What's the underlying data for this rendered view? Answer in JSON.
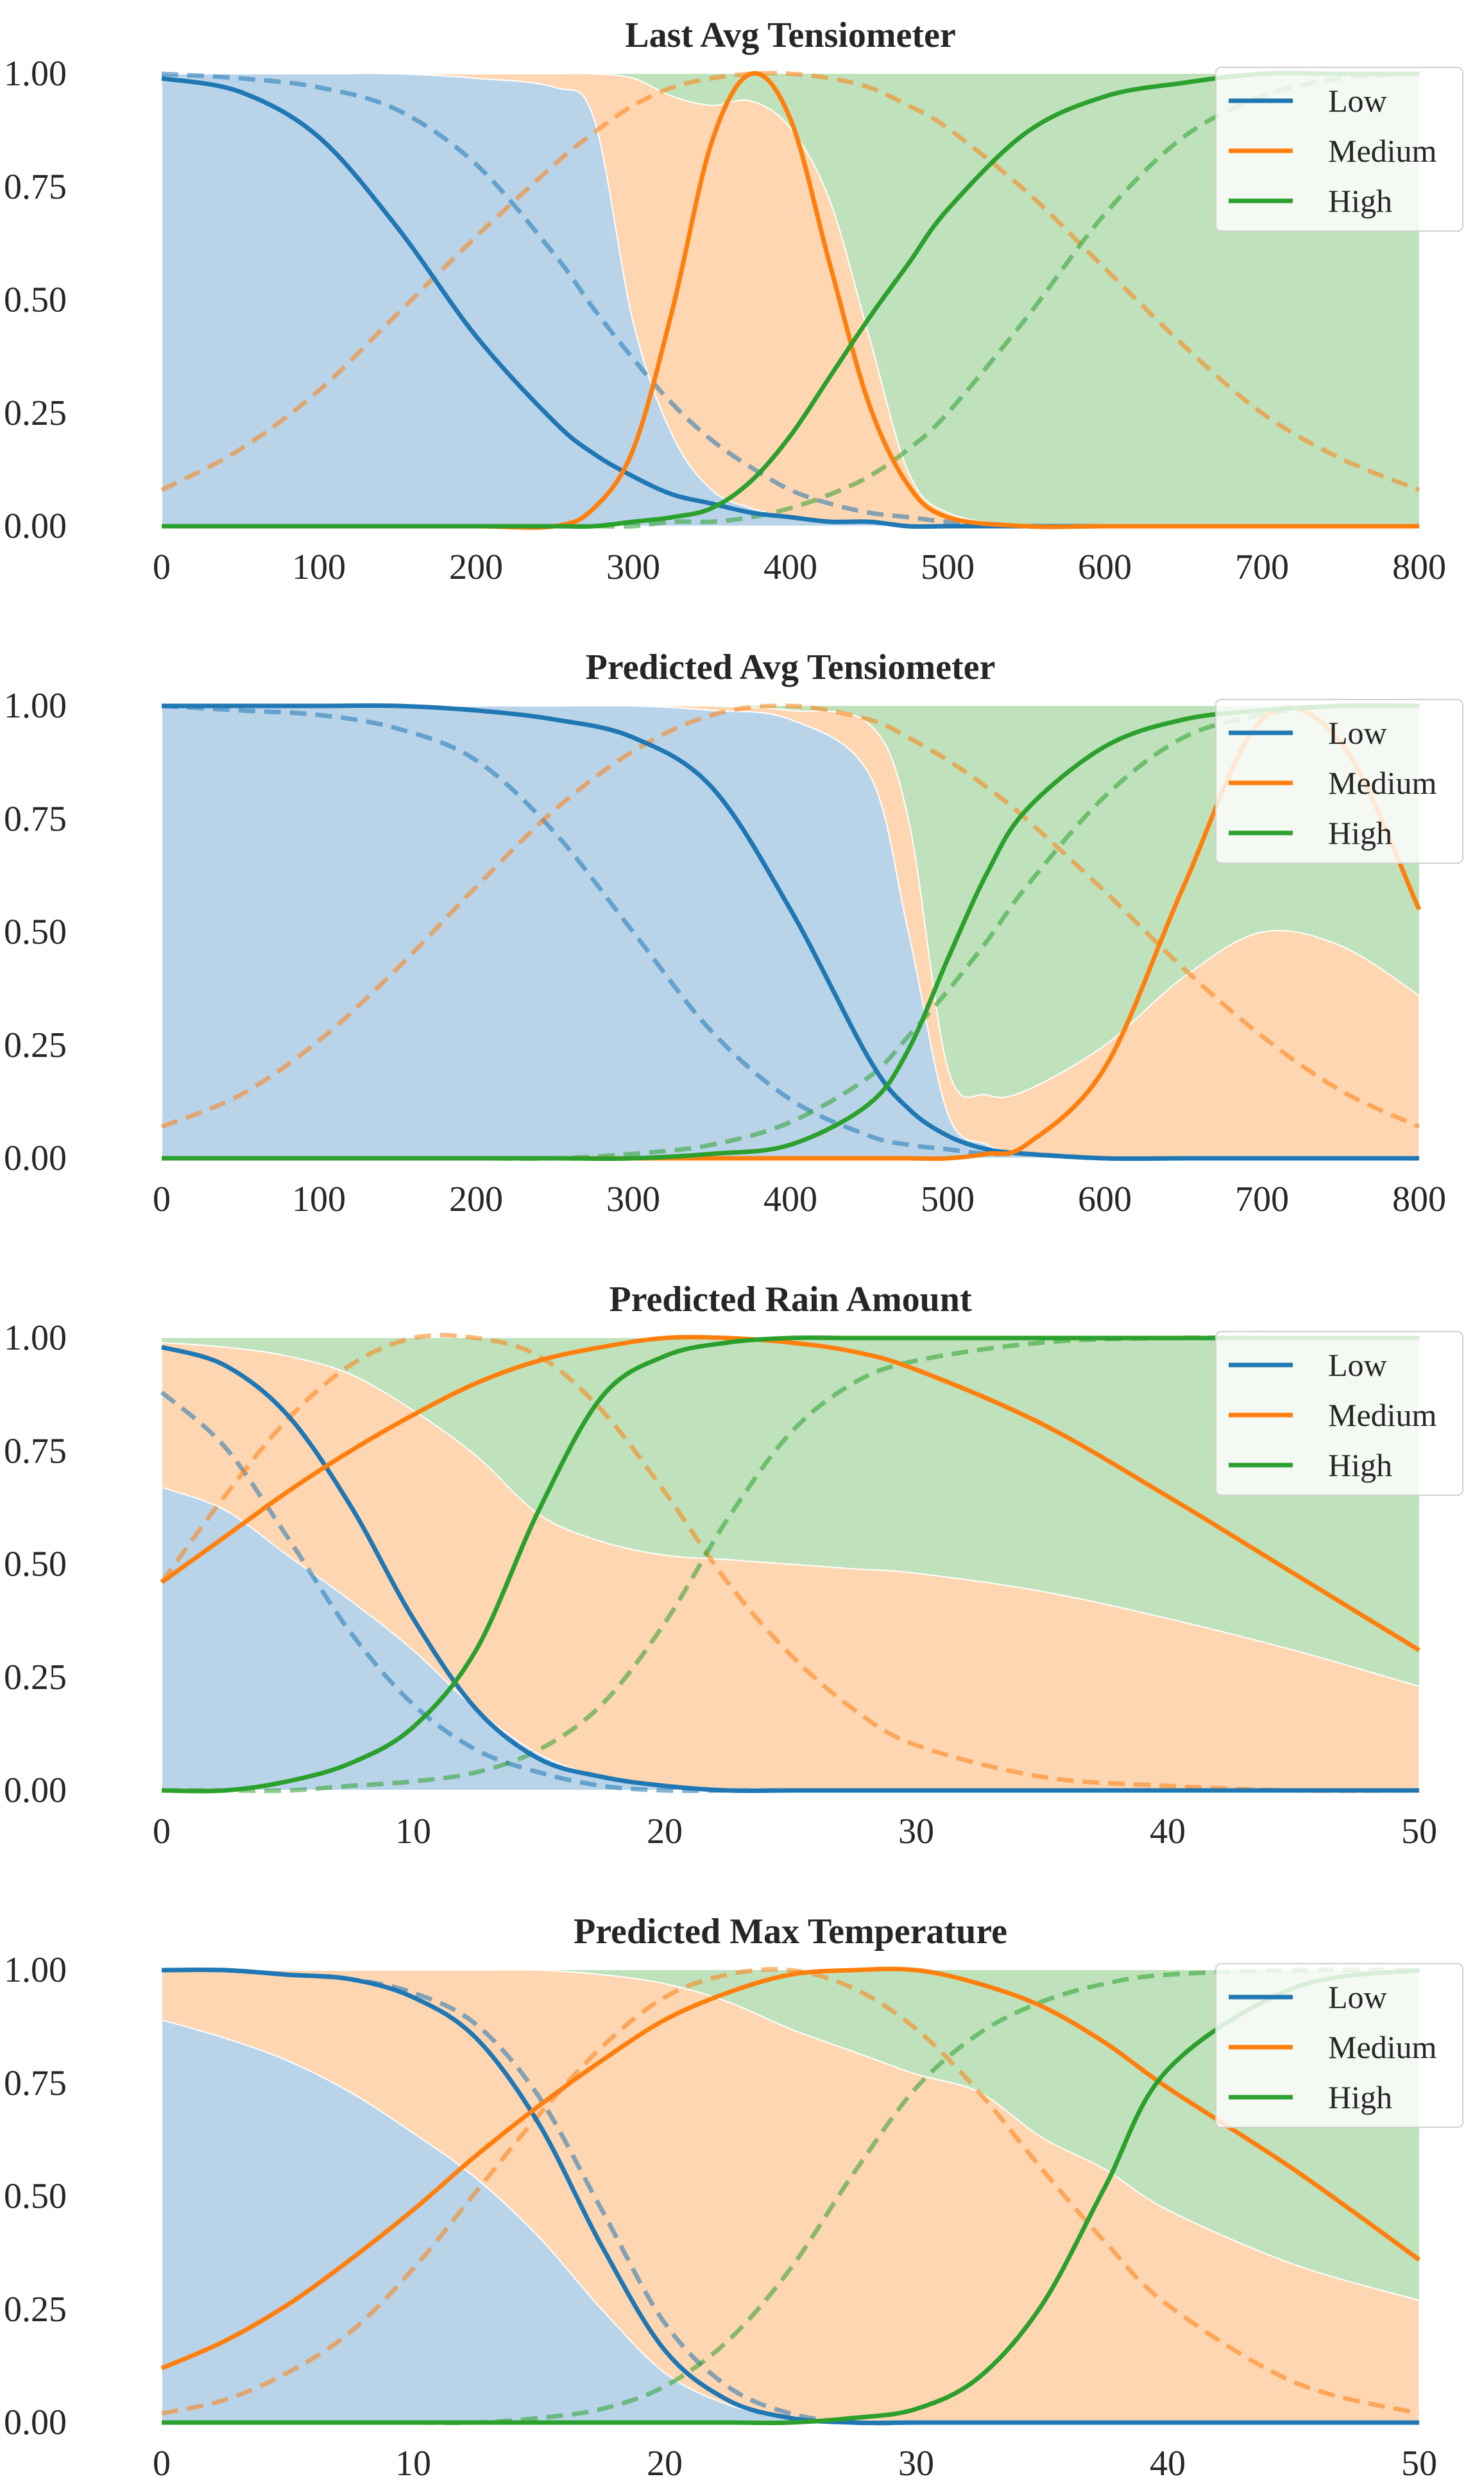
{
  "chart_data": [
    {
      "type": "line",
      "title": "Last Avg Tensiometer",
      "xlim": [
        0,
        800
      ],
      "ylim": [
        0,
        1
      ],
      "xticks": [
        "0",
        "100",
        "200",
        "300",
        "400",
        "500",
        "600",
        "700",
        "800"
      ],
      "yticks": [
        "0.00",
        "0.25",
        "0.50",
        "0.75",
        "1.00"
      ],
      "legend": {
        "position": "top-right",
        "entries": [
          "Low",
          "Medium",
          "High"
        ]
      },
      "x": [
        0,
        50,
        100,
        150,
        200,
        250,
        275,
        300,
        325,
        350,
        375,
        400,
        425,
        450,
        475,
        500,
        550,
        600,
        650,
        700,
        750,
        800
      ],
      "series": [
        {
          "name": "Low",
          "style": "solid",
          "color": "#1f77b4",
          "values": [
            0.99,
            0.96,
            0.86,
            0.66,
            0.42,
            0.23,
            0.16,
            0.11,
            0.07,
            0.05,
            0.03,
            0.02,
            0.01,
            0.01,
            0.0,
            0.0,
            0.0,
            0.0,
            0.0,
            0.0,
            0.0,
            0.0
          ]
        },
        {
          "name": "Medium",
          "style": "solid",
          "color": "#ff7f0e",
          "values": [
            0.0,
            0.0,
            0.0,
            0.0,
            0.0,
            0.0,
            0.04,
            0.17,
            0.48,
            0.85,
            1.0,
            0.9,
            0.58,
            0.27,
            0.09,
            0.02,
            0.0,
            0.0,
            0.0,
            0.0,
            0.0,
            0.0
          ]
        },
        {
          "name": "High",
          "style": "solid",
          "color": "#2ca02c",
          "values": [
            0.0,
            0.0,
            0.0,
            0.0,
            0.0,
            0.0,
            0.0,
            0.01,
            0.02,
            0.04,
            0.1,
            0.2,
            0.33,
            0.46,
            0.58,
            0.7,
            0.87,
            0.95,
            0.98,
            1.0,
            1.0,
            1.0
          ]
        },
        {
          "name": "Low (dashed)",
          "style": "dashed",
          "color": "#1f77b4",
          "values": [
            1.0,
            0.99,
            0.97,
            0.92,
            0.8,
            0.6,
            0.48,
            0.37,
            0.27,
            0.19,
            0.13,
            0.08,
            0.05,
            0.03,
            0.02,
            0.01,
            0.0,
            0.0,
            0.0,
            0.0,
            0.0,
            0.0
          ]
        },
        {
          "name": "Medium (dashed)",
          "style": "dashed",
          "color": "#ff7f0e",
          "values": [
            0.08,
            0.17,
            0.3,
            0.47,
            0.64,
            0.8,
            0.87,
            0.93,
            0.97,
            0.99,
            1.0,
            1.0,
            0.99,
            0.97,
            0.93,
            0.88,
            0.74,
            0.57,
            0.4,
            0.25,
            0.15,
            0.08
          ]
        },
        {
          "name": "High (dashed)",
          "style": "dashed",
          "color": "#2ca02c",
          "values": [
            0.0,
            0.0,
            0.0,
            0.0,
            0.0,
            0.0,
            0.0,
            0.0,
            0.01,
            0.01,
            0.02,
            0.04,
            0.07,
            0.11,
            0.17,
            0.25,
            0.46,
            0.69,
            0.86,
            0.95,
            0.99,
            1.0
          ]
        }
      ],
      "areas": {
        "low_upper": [
          1.0,
          1.0,
          1.0,
          1.0,
          0.99,
          0.97,
          0.9,
          0.45,
          0.2,
          0.08,
          0.04,
          0.02,
          0.01,
          0.01,
          0.0,
          0.0,
          0.0,
          0.0,
          0.0,
          0.0,
          0.0,
          0.0
        ],
        "medium_upper": [
          1.0,
          1.0,
          1.0,
          1.0,
          1.0,
          1.0,
          1.0,
          0.99,
          0.95,
          0.93,
          0.94,
          0.88,
          0.72,
          0.42,
          0.12,
          0.03,
          0.0,
          0.0,
          0.0,
          0.0,
          0.0,
          0.0
        ]
      }
    },
    {
      "type": "line",
      "title": "Predicted Avg Tensiometer",
      "xlim": [
        0,
        800
      ],
      "ylim": [
        0,
        1
      ],
      "xticks": [
        "0",
        "100",
        "200",
        "300",
        "400",
        "500",
        "600",
        "700",
        "800"
      ],
      "yticks": [
        "0.00",
        "0.25",
        "0.50",
        "0.75",
        "1.00"
      ],
      "legend": {
        "position": "top-right",
        "entries": [
          "Low",
          "Medium",
          "High"
        ]
      },
      "x": [
        0,
        50,
        100,
        150,
        200,
        250,
        300,
        350,
        400,
        450,
        475,
        500,
        525,
        550,
        600,
        650,
        700,
        750,
        800
      ],
      "series": [
        {
          "name": "Low",
          "style": "solid",
          "color": "#1f77b4",
          "values": [
            1.0,
            1.0,
            1.0,
            1.0,
            0.99,
            0.97,
            0.93,
            0.82,
            0.55,
            0.22,
            0.11,
            0.05,
            0.02,
            0.01,
            0.0,
            0.0,
            0.0,
            0.0,
            0.0
          ]
        },
        {
          "name": "Medium",
          "style": "solid",
          "color": "#ff7f0e",
          "values": [
            0.0,
            0.0,
            0.0,
            0.0,
            0.0,
            0.0,
            0.0,
            0.0,
            0.0,
            0.0,
            0.0,
            0.0,
            0.01,
            0.03,
            0.2,
            0.6,
            0.97,
            0.92,
            0.55
          ]
        },
        {
          "name": "High",
          "style": "solid",
          "color": "#2ca02c",
          "values": [
            0.0,
            0.0,
            0.0,
            0.0,
            0.0,
            0.0,
            0.0,
            0.01,
            0.03,
            0.12,
            0.24,
            0.44,
            0.63,
            0.77,
            0.91,
            0.97,
            0.99,
            1.0,
            1.0
          ]
        },
        {
          "name": "Low (dashed)",
          "style": "dashed",
          "color": "#1f77b4",
          "values": [
            1.0,
            0.99,
            0.98,
            0.95,
            0.88,
            0.72,
            0.5,
            0.28,
            0.13,
            0.05,
            0.03,
            0.02,
            0.01,
            0.01,
            0.0,
            0.0,
            0.0,
            0.0,
            0.0
          ]
        },
        {
          "name": "Medium (dashed)",
          "style": "dashed",
          "color": "#ff7f0e",
          "values": [
            0.07,
            0.14,
            0.26,
            0.42,
            0.6,
            0.77,
            0.9,
            0.98,
            1.0,
            0.97,
            0.93,
            0.88,
            0.82,
            0.75,
            0.59,
            0.42,
            0.27,
            0.15,
            0.07
          ]
        },
        {
          "name": "High (dashed)",
          "style": "dashed",
          "color": "#2ca02c",
          "values": [
            0.0,
            0.0,
            0.0,
            0.0,
            0.0,
            0.0,
            0.01,
            0.03,
            0.08,
            0.18,
            0.27,
            0.37,
            0.48,
            0.6,
            0.8,
            0.93,
            0.98,
            1.0,
            1.0
          ]
        }
      ],
      "areas": {
        "low_upper": [
          1.0,
          1.0,
          1.0,
          1.0,
          1.0,
          1.0,
          1.0,
          0.99,
          0.97,
          0.85,
          0.5,
          0.1,
          0.03,
          0.01,
          0.0,
          0.0,
          0.0,
          0.0,
          0.0
        ],
        "medium_upper": [
          1.0,
          1.0,
          1.0,
          1.0,
          1.0,
          1.0,
          1.0,
          1.0,
          0.99,
          0.96,
          0.75,
          0.2,
          0.14,
          0.15,
          0.25,
          0.4,
          0.5,
          0.47,
          0.36
        ]
      }
    },
    {
      "type": "line",
      "title": "Predicted Rain Amount",
      "xlim": [
        0,
        50
      ],
      "ylim": [
        0,
        1
      ],
      "xticks": [
        "0",
        "10",
        "20",
        "30",
        "40",
        "50"
      ],
      "yticks": [
        "0.00",
        "0.25",
        "0.50",
        "0.75",
        "1.00"
      ],
      "legend": {
        "position": "top-right",
        "entries": [
          "Low",
          "Medium",
          "High"
        ]
      },
      "x": [
        0,
        2.5,
        5,
        7.5,
        10,
        12.5,
        15,
        17.5,
        20,
        22.5,
        25,
        27.5,
        30,
        35,
        40,
        45,
        50
      ],
      "series": [
        {
          "name": "Low",
          "style": "solid",
          "color": "#1f77b4",
          "values": [
            0.98,
            0.94,
            0.83,
            0.63,
            0.38,
            0.18,
            0.07,
            0.03,
            0.01,
            0.0,
            0.0,
            0.0,
            0.0,
            0.0,
            0.0,
            0.0,
            0.0
          ]
        },
        {
          "name": "Medium",
          "style": "solid",
          "color": "#ff7f0e",
          "values": [
            0.46,
            0.56,
            0.66,
            0.75,
            0.83,
            0.9,
            0.95,
            0.98,
            1.0,
            1.0,
            0.99,
            0.97,
            0.93,
            0.81,
            0.65,
            0.48,
            0.31
          ]
        },
        {
          "name": "High",
          "style": "solid",
          "color": "#2ca02c",
          "values": [
            0.0,
            0.0,
            0.02,
            0.06,
            0.14,
            0.31,
            0.62,
            0.87,
            0.96,
            0.99,
            1.0,
            1.0,
            1.0,
            1.0,
            1.0,
            1.0,
            1.0
          ]
        },
        {
          "name": "Low (dashed)",
          "style": "dashed",
          "color": "#1f77b4",
          "values": [
            0.88,
            0.76,
            0.56,
            0.35,
            0.19,
            0.09,
            0.04,
            0.01,
            0.0,
            0.0,
            0.0,
            0.0,
            0.0,
            0.0,
            0.0,
            0.0,
            0.0
          ]
        },
        {
          "name": "Medium (dashed)",
          "style": "dashed",
          "color": "#ff7f0e",
          "values": [
            0.46,
            0.65,
            0.82,
            0.94,
            1.0,
            1.0,
            0.96,
            0.84,
            0.66,
            0.46,
            0.3,
            0.18,
            0.1,
            0.03,
            0.01,
            0.0,
            0.0
          ]
        },
        {
          "name": "High (dashed)",
          "style": "dashed",
          "color": "#2ca02c",
          "values": [
            0.0,
            0.0,
            0.0,
            0.01,
            0.02,
            0.04,
            0.09,
            0.19,
            0.37,
            0.6,
            0.79,
            0.9,
            0.95,
            0.99,
            1.0,
            1.0,
            1.0
          ]
        }
      ],
      "areas": {
        "low_upper": [
          0.67,
          0.62,
          0.52,
          0.42,
          0.31,
          0.18,
          0.08,
          0.03,
          0.01,
          0.0,
          0.0,
          0.0,
          0.0,
          0.0,
          0.0,
          0.0,
          0.0
        ],
        "medium_upper": [
          0.99,
          0.98,
          0.96,
          0.92,
          0.84,
          0.74,
          0.61,
          0.55,
          0.52,
          0.51,
          0.5,
          0.49,
          0.48,
          0.44,
          0.38,
          0.31,
          0.23
        ]
      }
    },
    {
      "type": "line",
      "title": "Predicted Max Temperature",
      "xlim": [
        0,
        50
      ],
      "ylim": [
        0,
        1
      ],
      "xticks": [
        "0",
        "10",
        "20",
        "30",
        "40",
        "50"
      ],
      "yticks": [
        "0.00",
        "0.25",
        "0.50",
        "0.75",
        "1.00"
      ],
      "legend": {
        "position": "top-right",
        "entries": [
          "Low",
          "Medium",
          "High"
        ]
      },
      "x": [
        0,
        2.5,
        5,
        7.5,
        10,
        12.5,
        15,
        17.5,
        20,
        22.5,
        25,
        27.5,
        30,
        32.5,
        35,
        37.5,
        40,
        45,
        50
      ],
      "series": [
        {
          "name": "Low",
          "style": "solid",
          "color": "#1f77b4",
          "values": [
            1.0,
            1.0,
            0.99,
            0.98,
            0.94,
            0.85,
            0.66,
            0.39,
            0.16,
            0.05,
            0.01,
            0.0,
            0.0,
            0.0,
            0.0,
            0.0,
            0.0,
            0.0,
            0.0
          ]
        },
        {
          "name": "Medium",
          "style": "solid",
          "color": "#ff7f0e",
          "values": [
            0.12,
            0.18,
            0.26,
            0.36,
            0.47,
            0.59,
            0.7,
            0.8,
            0.89,
            0.95,
            0.99,
            1.0,
            1.0,
            0.97,
            0.92,
            0.84,
            0.74,
            0.56,
            0.36
          ]
        },
        {
          "name": "High",
          "style": "solid",
          "color": "#2ca02c",
          "values": [
            0.0,
            0.0,
            0.0,
            0.0,
            0.0,
            0.0,
            0.0,
            0.0,
            0.0,
            0.0,
            0.0,
            0.01,
            0.03,
            0.1,
            0.26,
            0.52,
            0.78,
            0.96,
            1.0
          ]
        },
        {
          "name": "Low (dashed)",
          "style": "dashed",
          "color": "#1f77b4",
          "values": [
            1.0,
            1.0,
            0.99,
            0.98,
            0.95,
            0.88,
            0.72,
            0.47,
            0.22,
            0.08,
            0.02,
            0.0,
            0.0,
            0.0,
            0.0,
            0.0,
            0.0,
            0.0,
            0.0
          ]
        },
        {
          "name": "Medium (dashed)",
          "style": "dashed",
          "color": "#ff7f0e",
          "values": [
            0.02,
            0.05,
            0.11,
            0.2,
            0.34,
            0.51,
            0.68,
            0.83,
            0.94,
            0.99,
            1.0,
            0.96,
            0.87,
            0.73,
            0.56,
            0.4,
            0.26,
            0.09,
            0.02
          ]
        },
        {
          "name": "High (dashed)",
          "style": "dashed",
          "color": "#2ca02c",
          "values": [
            0.0,
            0.0,
            0.0,
            0.0,
            0.0,
            0.0,
            0.01,
            0.03,
            0.08,
            0.18,
            0.34,
            0.55,
            0.74,
            0.86,
            0.93,
            0.97,
            0.99,
            1.0,
            1.0
          ]
        }
      ],
      "areas": {
        "low_upper": [
          0.89,
          0.85,
          0.8,
          0.73,
          0.64,
          0.54,
          0.41,
          0.25,
          0.11,
          0.04,
          0.01,
          0.0,
          0.0,
          0.0,
          0.0,
          0.0,
          0.0,
          0.0,
          0.0
        ],
        "medium_upper": [
          1.0,
          1.0,
          1.0,
          1.0,
          1.0,
          1.0,
          1.0,
          0.99,
          0.97,
          0.93,
          0.87,
          0.82,
          0.77,
          0.73,
          0.63,
          0.56,
          0.47,
          0.35,
          0.27
        ]
      }
    }
  ],
  "colors": {
    "low": "#1f77b4",
    "medium": "#ff7f0e",
    "high": "#2ca02c",
    "low_fill": "#b9d4e9",
    "medium_fill": "#fed6b2",
    "high_fill": "#bfe2bd"
  }
}
